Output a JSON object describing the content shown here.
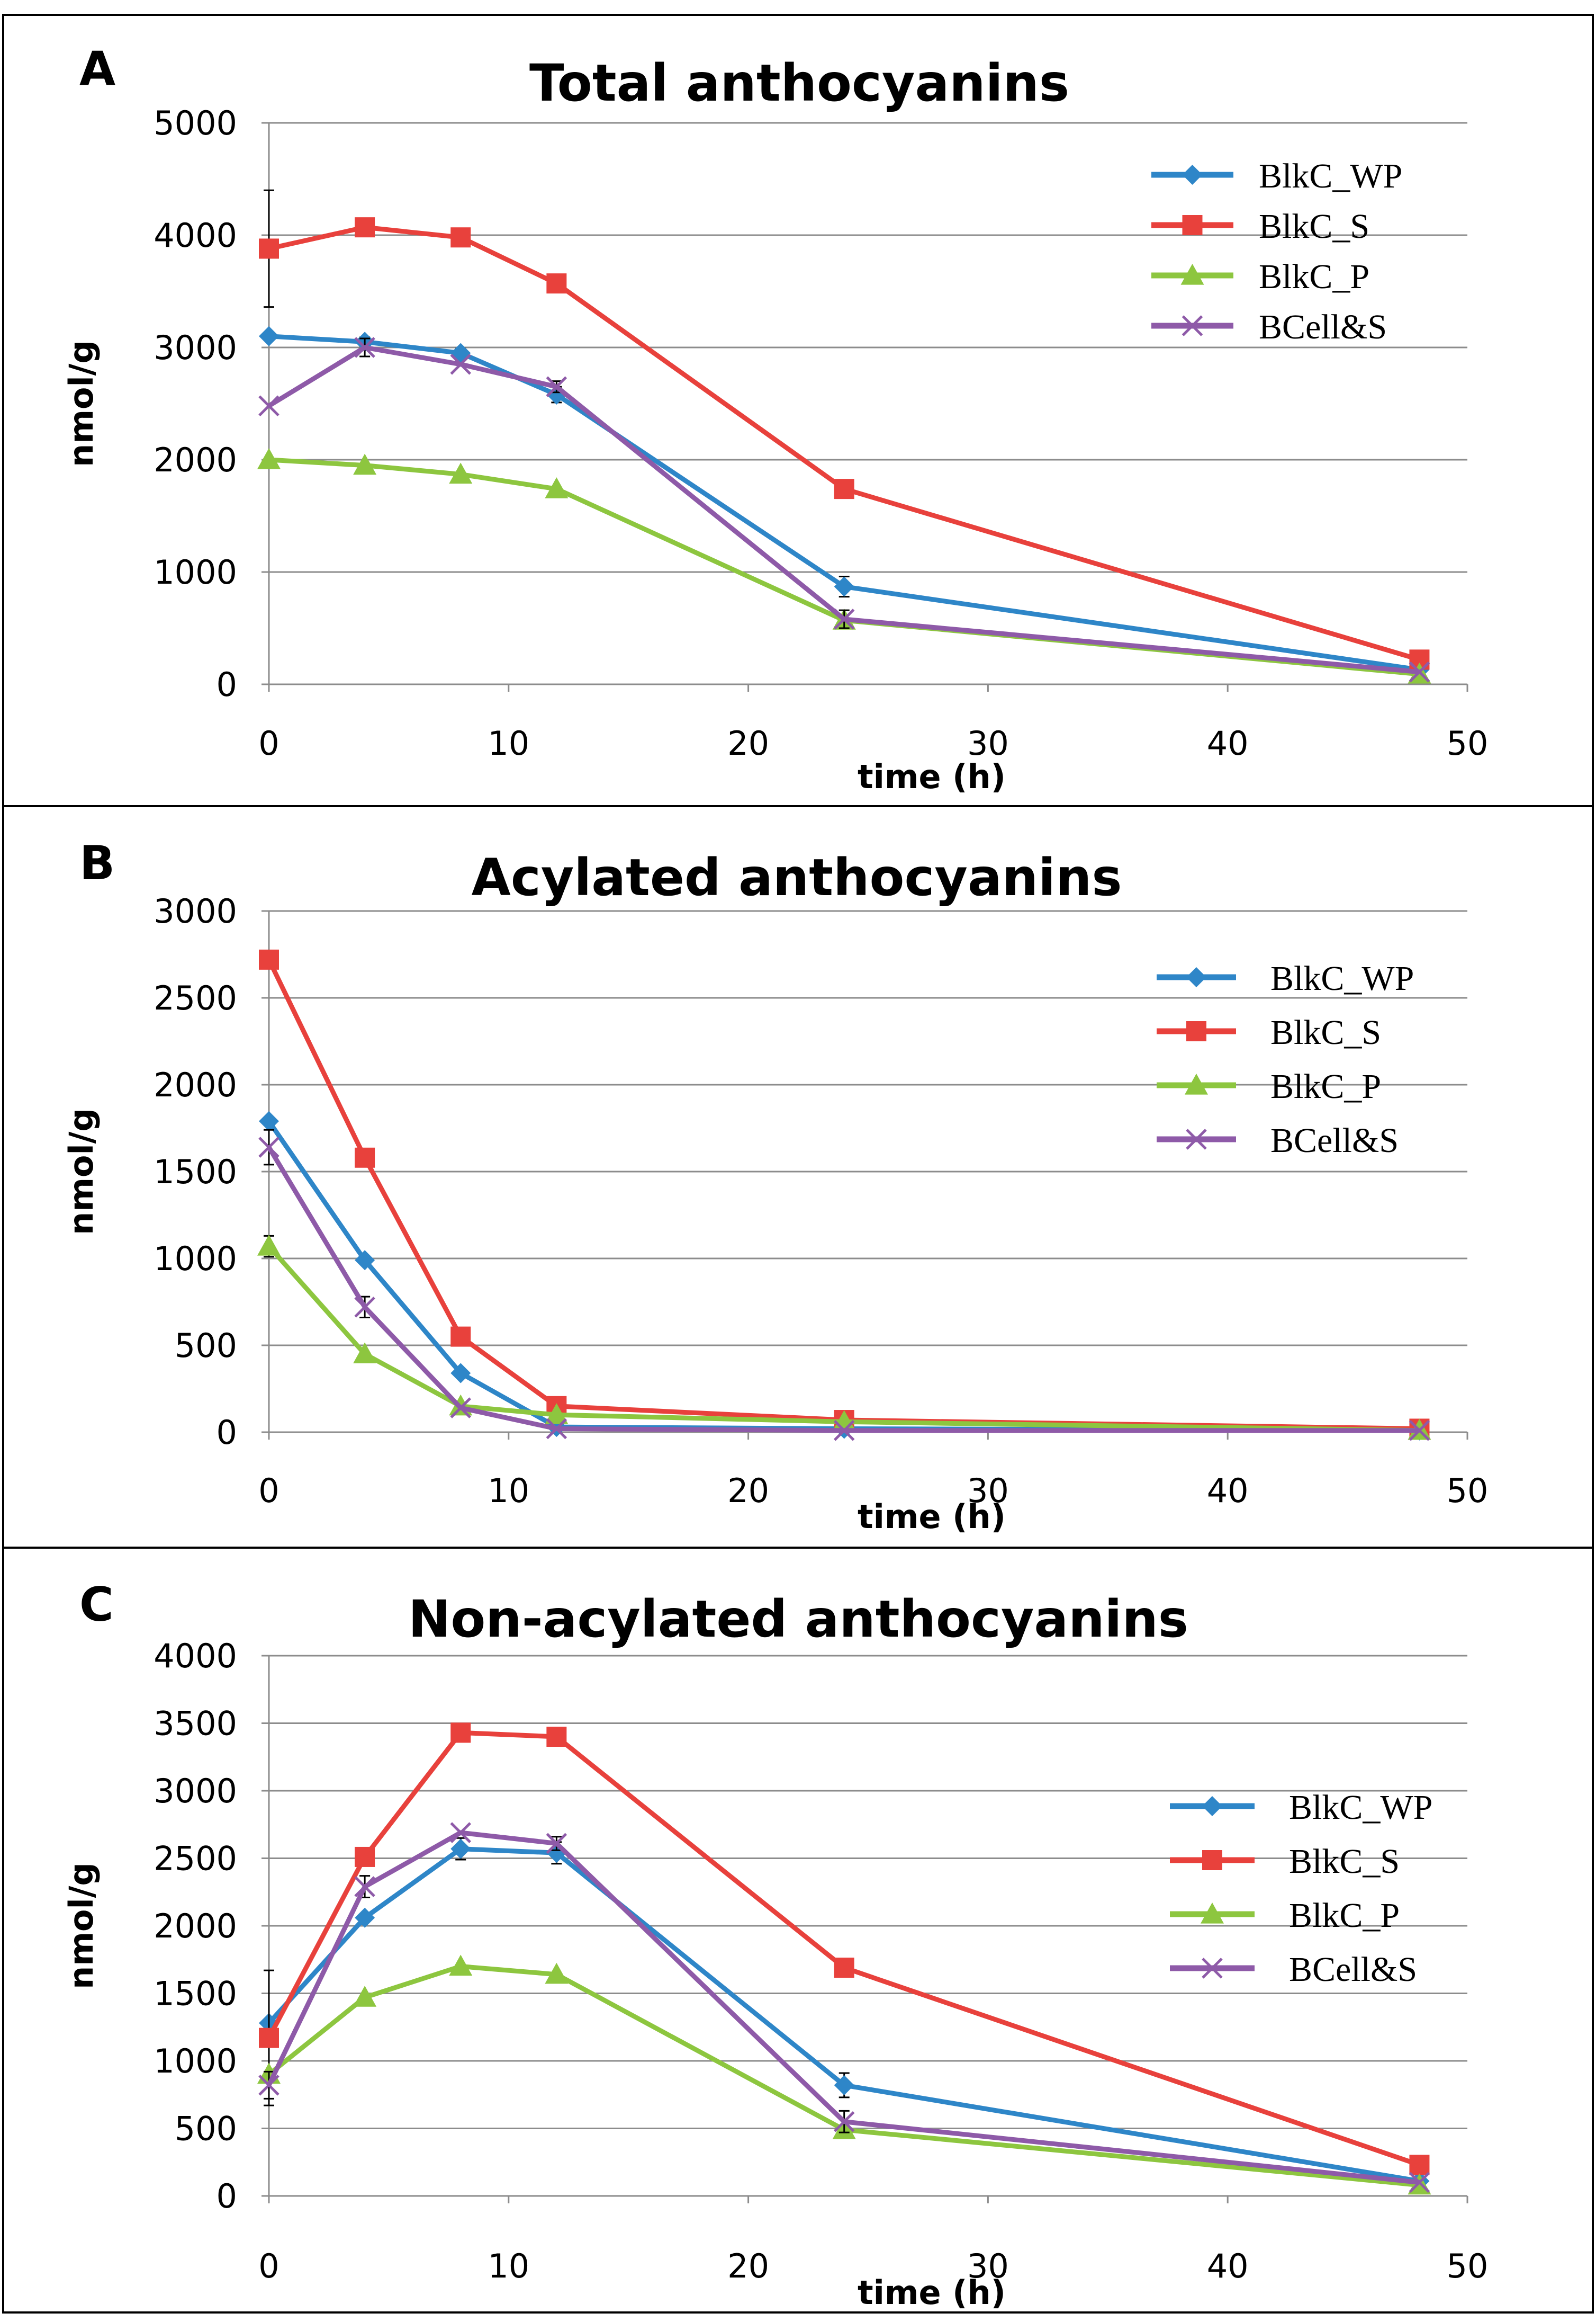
{
  "figure": {
    "series_style": [
      {
        "name": "BlkC_WP",
        "color": "#2E86C8",
        "marker": "diamond"
      },
      {
        "name": "BlkC_S",
        "color": "#E8413C",
        "marker": "square"
      },
      {
        "name": "BlkC_P",
        "color": "#8DC63F",
        "marker": "triangle"
      },
      {
        "name": "BCell&S",
        "color": "#8E5AA8",
        "marker": "x"
      }
    ],
    "error_bar_color": "#000000",
    "grid_color": "#8C8C8C"
  },
  "chart_data": [
    {
      "panel": "A",
      "type": "line",
      "title": "Total anthocyanins",
      "xlabel": "time (h)",
      "ylabel": "nmol/g",
      "x": [
        0,
        4,
        8,
        12,
        24,
        48
      ],
      "xlim": [
        0,
        50
      ],
      "xticks": [
        0,
        10,
        20,
        30,
        40,
        50
      ],
      "ylim": [
        0,
        5000
      ],
      "yticks": [
        0,
        1000,
        2000,
        3000,
        4000,
        5000
      ],
      "grid": "horizontal",
      "legend": "top-right",
      "series": [
        {
          "name": "BlkC_WP",
          "values": [
            3100,
            3050,
            2950,
            2580,
            870,
            130
          ],
          "errors": [
            0,
            40,
            40,
            70,
            90,
            0
          ]
        },
        {
          "name": "BlkC_S",
          "values": [
            3880,
            4070,
            3980,
            3570,
            1740,
            220
          ],
          "errors": [
            520,
            0,
            0,
            0,
            0,
            0
          ]
        },
        {
          "name": "BlkC_P",
          "values": [
            2000,
            1950,
            1870,
            1740,
            570,
            90
          ],
          "errors": [
            0,
            0,
            0,
            0,
            0,
            0
          ]
        },
        {
          "name": "BCell&S",
          "values": [
            2480,
            3000,
            2850,
            2650,
            580,
            110
          ],
          "errors": [
            0,
            80,
            0,
            50,
            80,
            0
          ]
        }
      ]
    },
    {
      "panel": "B",
      "type": "line",
      "title": "Acylated anthocyanins",
      "xlabel": "time (h)",
      "ylabel": "nmol/g",
      "x": [
        0,
        4,
        8,
        12,
        24,
        48
      ],
      "xlim": [
        0,
        50
      ],
      "xticks": [
        0,
        10,
        20,
        30,
        40,
        50
      ],
      "ylim": [
        0,
        3000
      ],
      "yticks": [
        0,
        500,
        1000,
        1500,
        2000,
        2500,
        3000
      ],
      "grid": "horizontal",
      "legend": "top-right",
      "series": [
        {
          "name": "BlkC_WP",
          "values": [
            1790,
            990,
            340,
            30,
            20,
            10
          ],
          "errors": [
            0,
            0,
            0,
            0,
            0,
            0
          ]
        },
        {
          "name": "BlkC_S",
          "values": [
            2720,
            1580,
            550,
            150,
            70,
            20
          ],
          "errors": [
            0,
            0,
            0,
            0,
            0,
            0
          ]
        },
        {
          "name": "BlkC_P",
          "values": [
            1070,
            450,
            150,
            100,
            60,
            10
          ],
          "errors": [
            60,
            0,
            0,
            0,
            0,
            0
          ]
        },
        {
          "name": "BCell&S",
          "values": [
            1640,
            720,
            140,
            20,
            10,
            10
          ],
          "errors": [
            100,
            60,
            0,
            0,
            0,
            0
          ]
        }
      ]
    },
    {
      "panel": "C",
      "type": "line",
      "title": "Non-acylated anthocyanins",
      "xlabel": "time (h)",
      "ylabel": "nmol/g",
      "x": [
        0,
        4,
        8,
        12,
        24,
        48
      ],
      "xlim": [
        0,
        50
      ],
      "xticks": [
        0,
        10,
        20,
        30,
        40,
        50
      ],
      "ylim": [
        0,
        4000
      ],
      "yticks": [
        0,
        500,
        1000,
        1500,
        2000,
        2500,
        3000,
        3500,
        4000
      ],
      "grid": "horizontal",
      "legend": "right",
      "series": [
        {
          "name": "BlkC_WP",
          "values": [
            1280,
            2060,
            2570,
            2540,
            820,
            110
          ],
          "errors": [
            0,
            0,
            80,
            80,
            90,
            0
          ]
        },
        {
          "name": "BlkC_S",
          "values": [
            1170,
            2510,
            3430,
            3400,
            1690,
            230
          ],
          "errors": [
            500,
            0,
            0,
            0,
            0,
            0
          ]
        },
        {
          "name": "BlkC_P",
          "values": [
            900,
            1470,
            1700,
            1640,
            490,
            80
          ],
          "errors": [
            0,
            0,
            0,
            0,
            0,
            0
          ]
        },
        {
          "name": "BCell&S",
          "values": [
            820,
            2290,
            2690,
            2610,
            550,
            100
          ],
          "errors": [
            100,
            80,
            0,
            50,
            80,
            0
          ]
        }
      ]
    }
  ]
}
